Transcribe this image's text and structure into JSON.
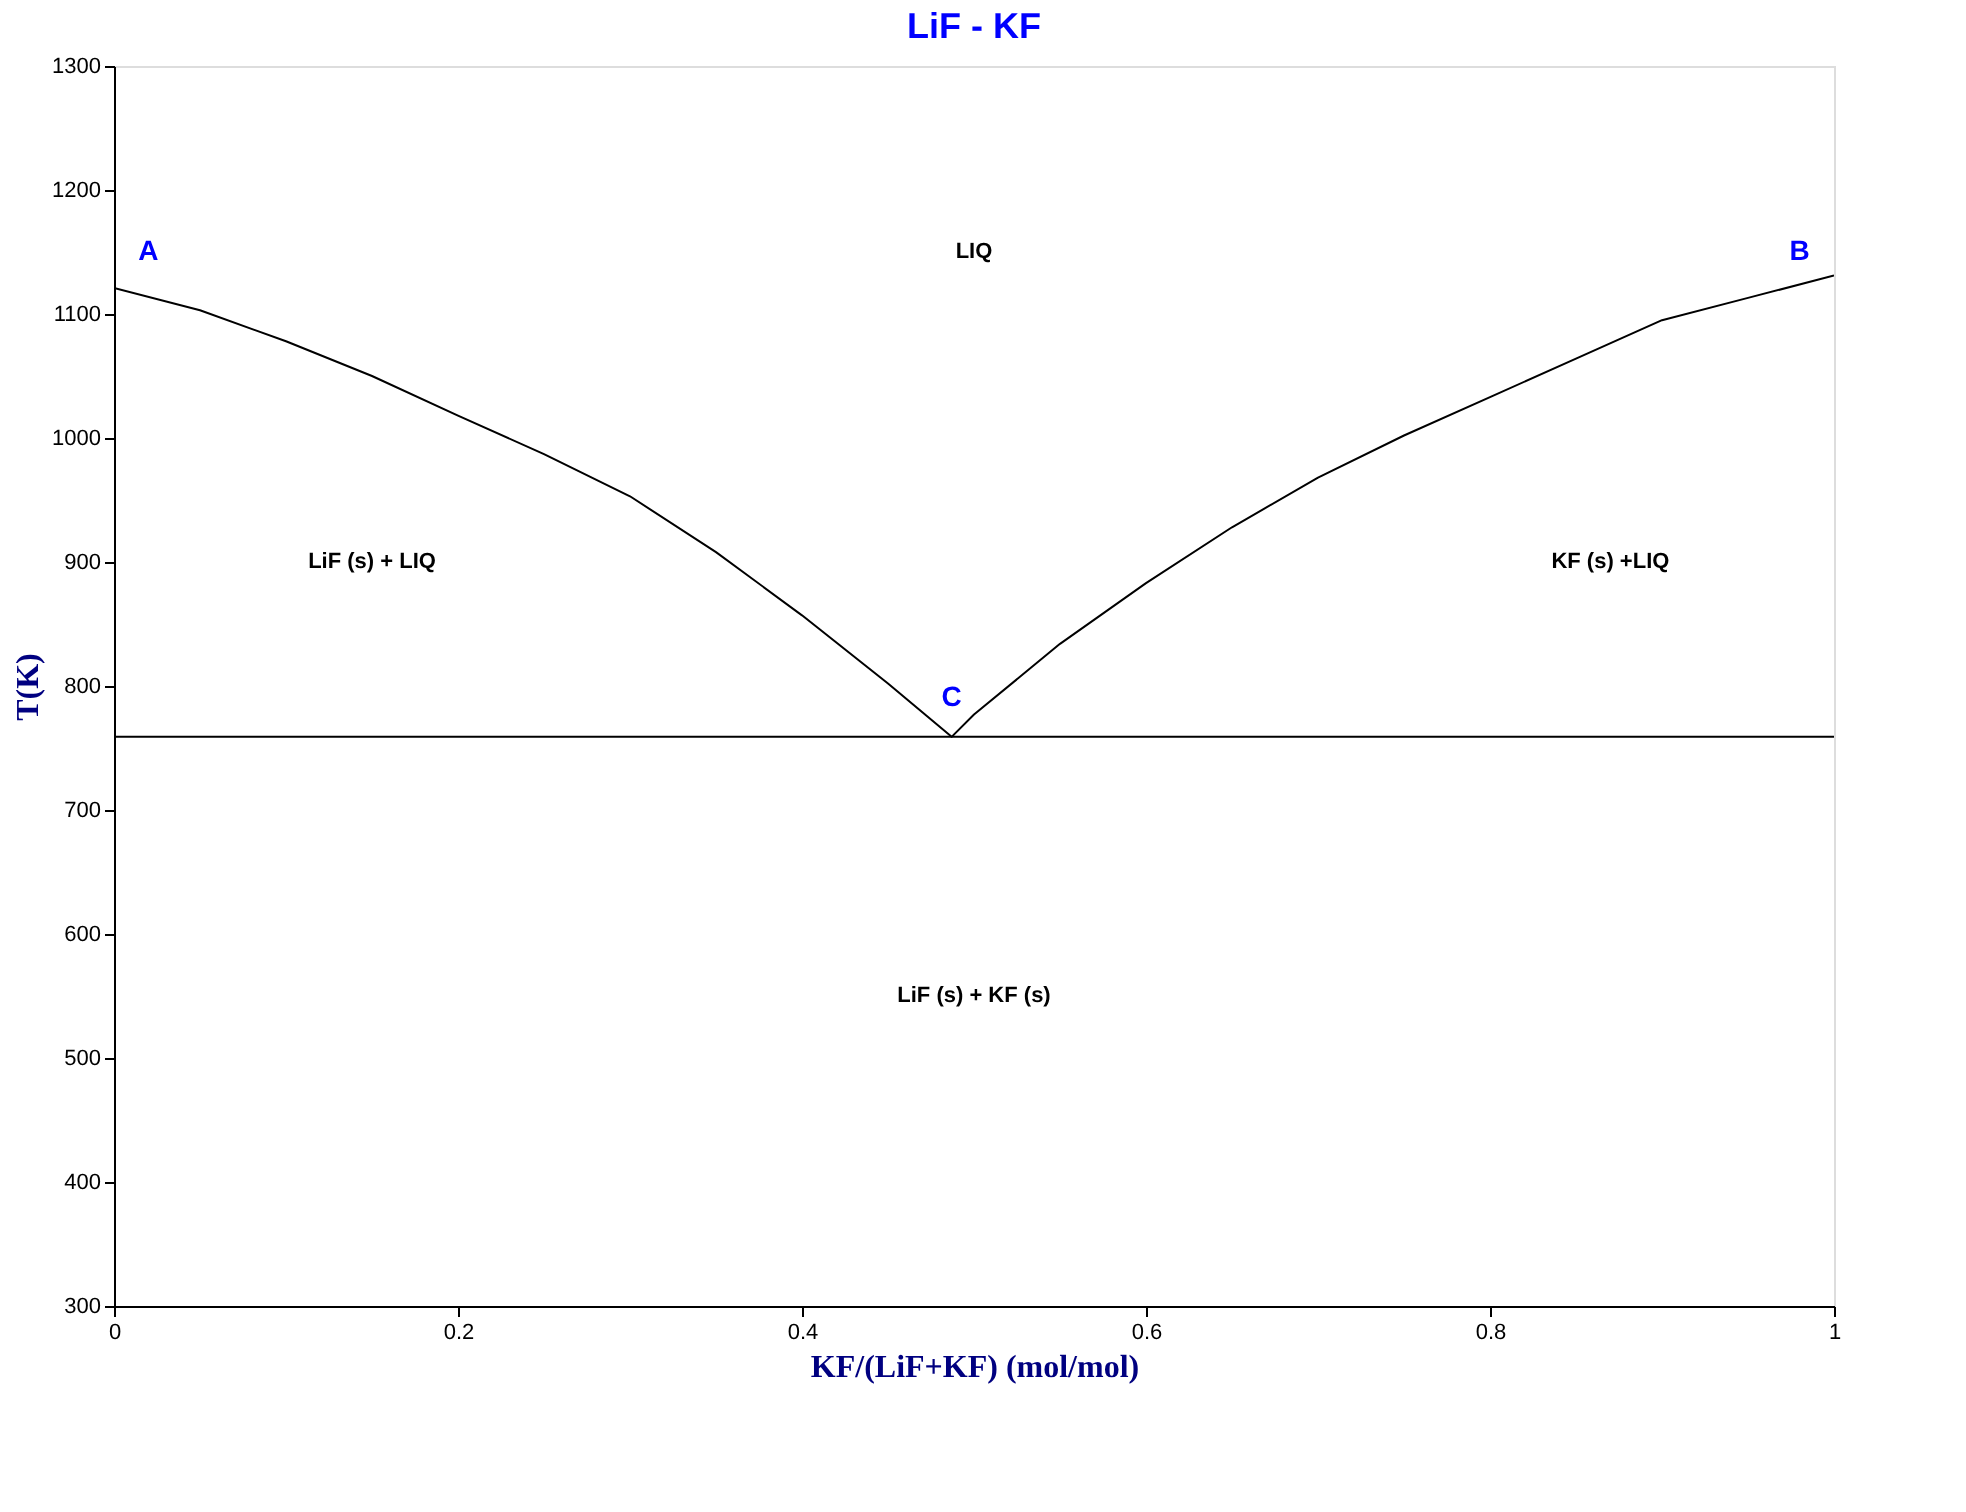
{
  "chart_data": {
    "type": "line",
    "title": "LiF - KF",
    "xlabel": "KF/(LiF+KF) (mol/mol)",
    "ylabel": "T(K)",
    "xlim": [
      0,
      1
    ],
    "xticks": [
      0,
      0.2,
      0.4,
      0.6,
      0.8,
      1
    ],
    "ylim": [
      300,
      1300
    ],
    "yticks": [
      300,
      400,
      500,
      600,
      700,
      800,
      900,
      1000,
      1100,
      1200,
      1300
    ],
    "grid": false,
    "marker": "none",
    "line_style": "solid",
    "series": [
      {
        "color": "#000000",
        "x": [
          0,
          0.05,
          0.1,
          0.15,
          0.2,
          0.25,
          0.3,
          0.35,
          0.4,
          0.45,
          0.487,
          0.5,
          0.55,
          0.6,
          0.65,
          0.7,
          0.75,
          0.8,
          0.85,
          0.9,
          0.95,
          1
        ],
        "values": [
          1121,
          1103,
          1078,
          1050,
          1018,
          987,
          953,
          908,
          857,
          802,
          759,
          777,
          834,
          883,
          928,
          968,
          1002,
          1033,
          1064,
          1095,
          1113,
          1131
        ]
      },
      {
        "color": "#000000",
        "x": [
          0,
          1
        ],
        "values": [
          759,
          759
        ]
      }
    ],
    "annotations": [
      "A",
      "B",
      "C",
      "LIQ",
      "LiF (s) + LIQ",
      "KF (s) +LIQ",
      "LiF (s) + KF (s)"
    ]
  }
}
